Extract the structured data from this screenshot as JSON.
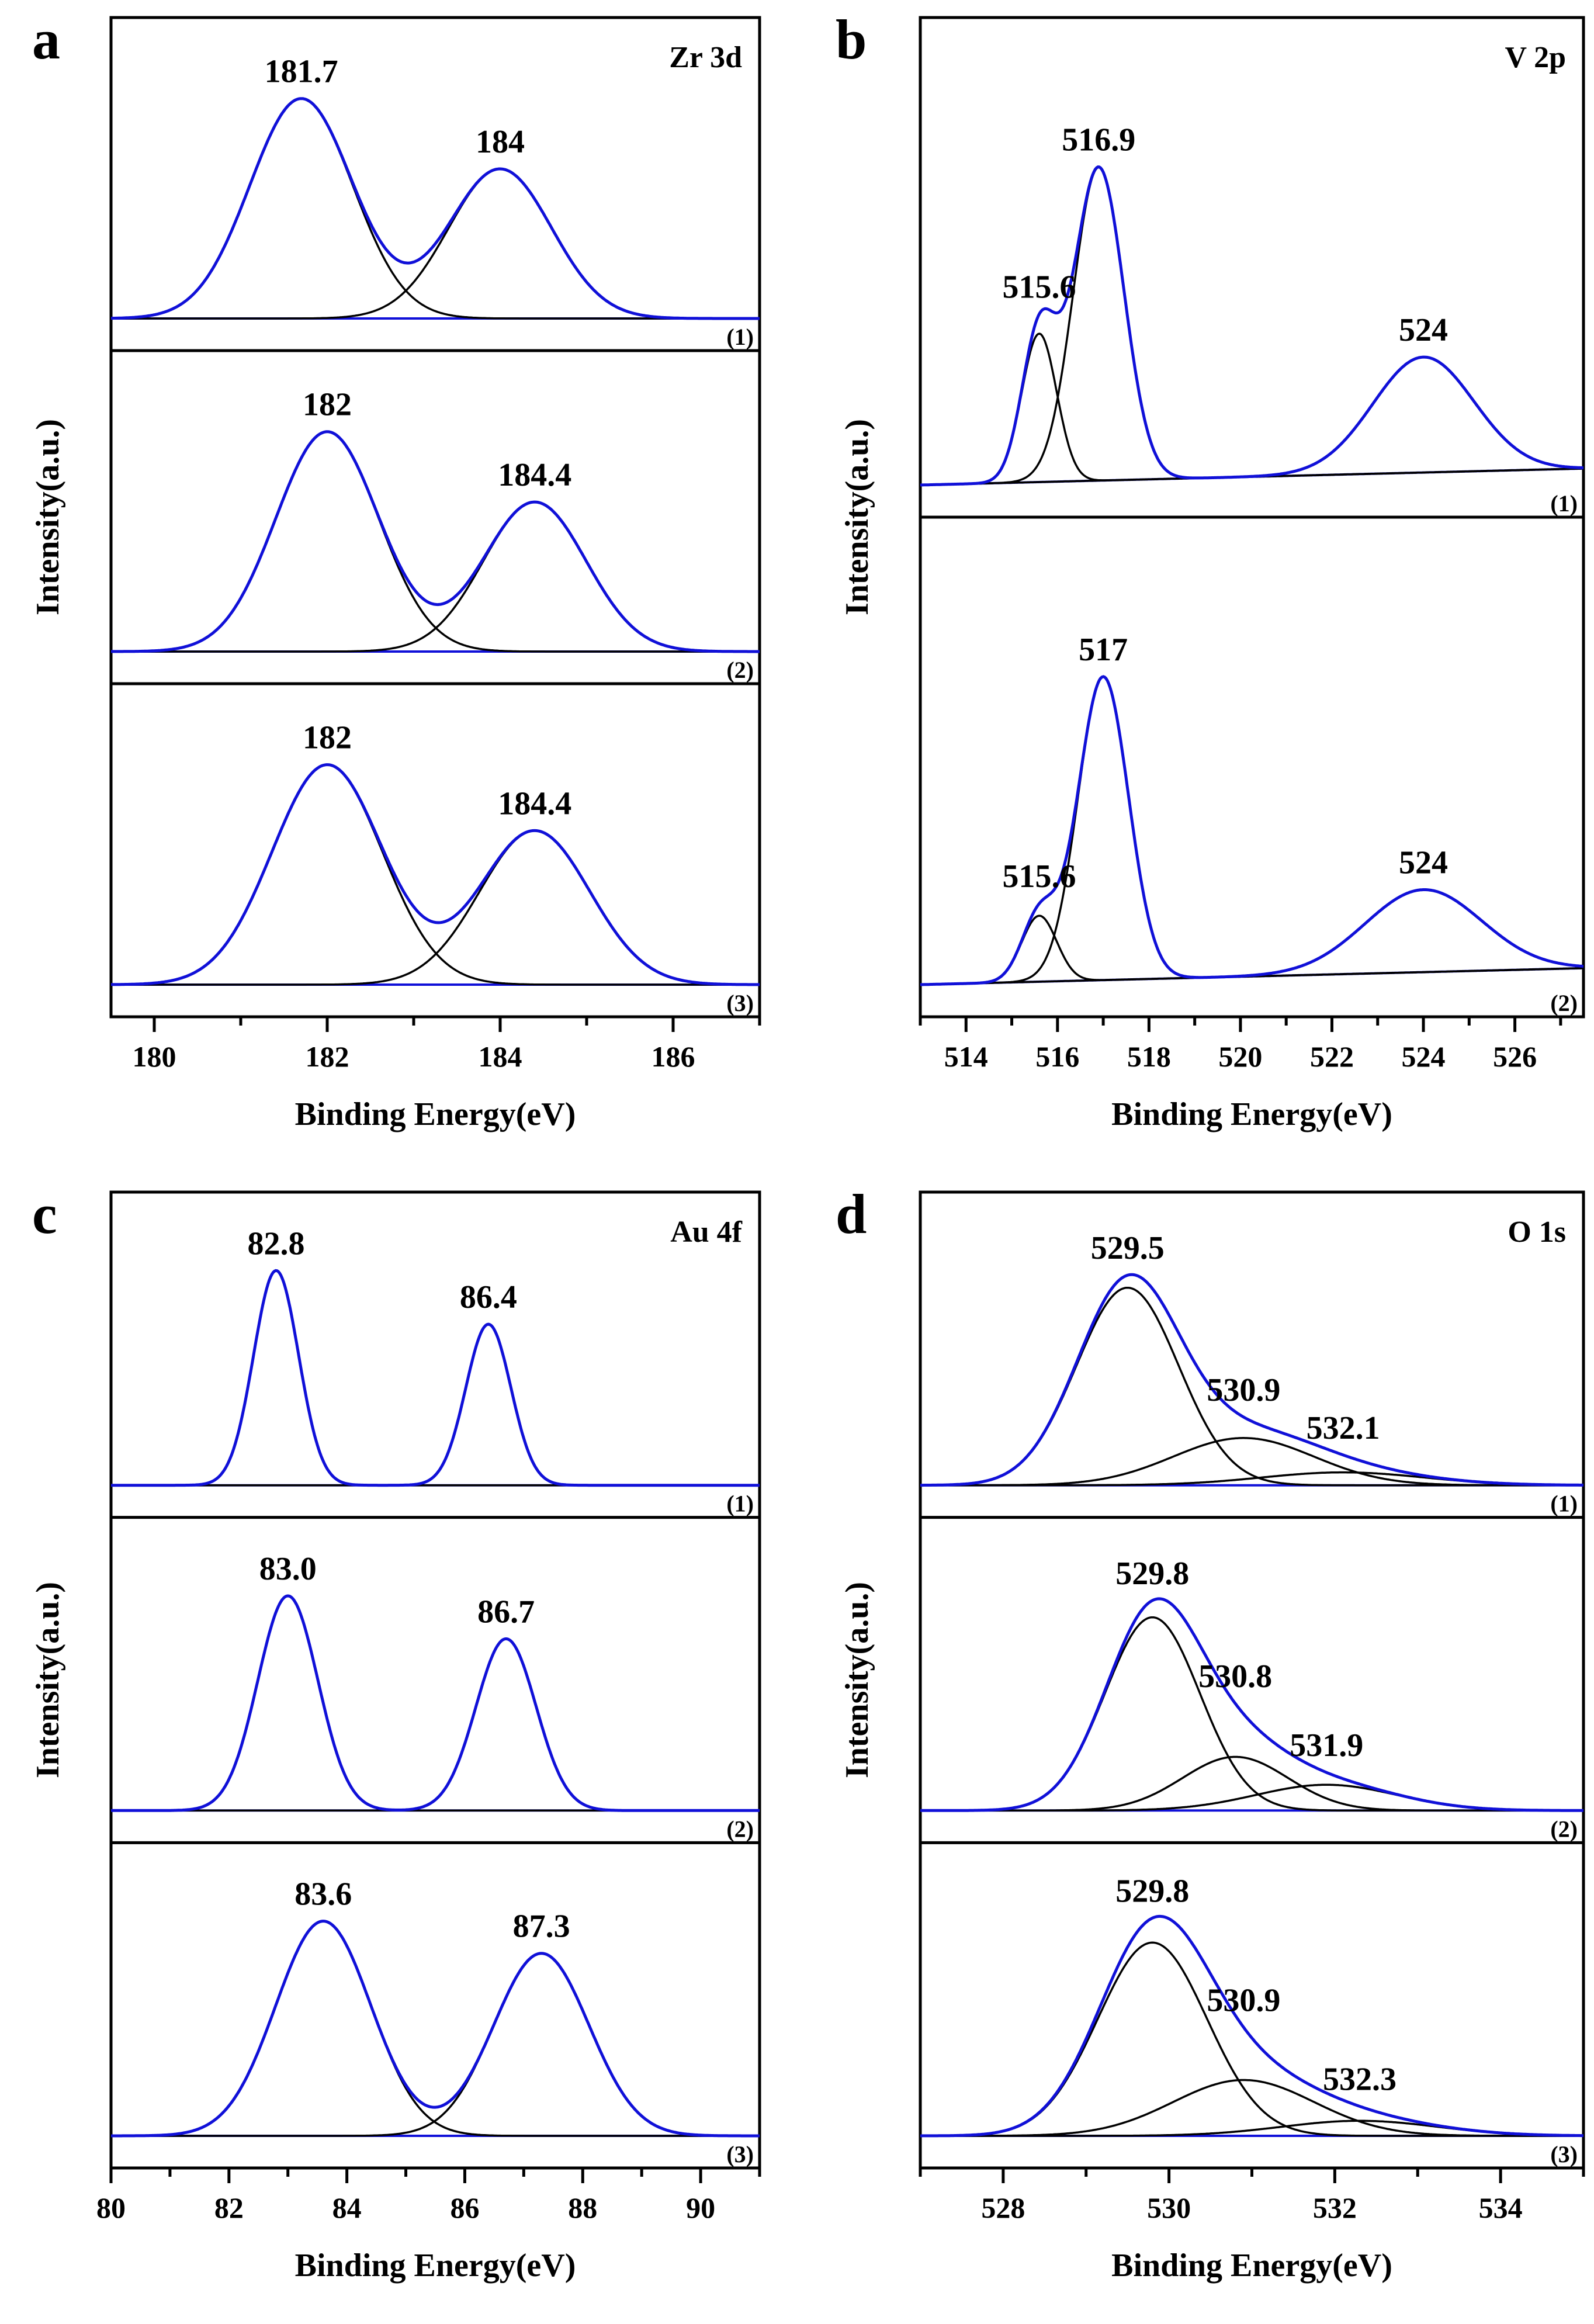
{
  "colors": {
    "envelope": "#1010d8",
    "component": "#000000",
    "axis": "#000000"
  },
  "chart_data": [
    {
      "id": "a",
      "type": "line",
      "panel_label": "a",
      "region_label": "Zr 3d",
      "xlabel": "Binding Energy(eV)",
      "ylabel": "Intensity(a.u.)",
      "xlim": [
        179.5,
        187
      ],
      "x_ticks": [
        180,
        182,
        184,
        186
      ],
      "x_tick_labels": [
        "180",
        "182",
        "184",
        "186"
      ],
      "grid": false,
      "spectra": [
        {
          "label": "(1)",
          "peaks": [
            {
              "center": 181.7,
              "label": "181.7",
              "height": 1.0,
              "fwhm": 1.4
            },
            {
              "center": 184.0,
              "label": "184",
              "height": 0.68,
              "fwhm": 1.4
            }
          ]
        },
        {
          "label": "(2)",
          "peaks": [
            {
              "center": 182.0,
              "label": "182",
              "height": 1.0,
              "fwhm": 1.4
            },
            {
              "center": 184.4,
              "label": "184.4",
              "height": 0.68,
              "fwhm": 1.4
            }
          ]
        },
        {
          "label": "(3)",
          "peaks": [
            {
              "center": 182.0,
              "label": "182",
              "height": 1.0,
              "fwhm": 1.5
            },
            {
              "center": 184.4,
              "label": "184.4",
              "height": 0.7,
              "fwhm": 1.5
            }
          ]
        }
      ]
    },
    {
      "id": "b",
      "type": "line",
      "panel_label": "b",
      "region_label": "V 2p",
      "xlabel": "Binding Energy(eV)",
      "ylabel": "Intensity(a.u.)",
      "xlim": [
        513,
        527.5
      ],
      "x_ticks": [
        514,
        516,
        518,
        520,
        522,
        524,
        526
      ],
      "x_tick_labels": [
        "514",
        "516",
        "518",
        "520",
        "522",
        "524",
        "526"
      ],
      "grid": false,
      "spectra": [
        {
          "label": "(1)",
          "peaks": [
            {
              "center": 515.6,
              "label": "515.6",
              "height": 0.45,
              "fwhm": 0.9
            },
            {
              "center": 516.9,
              "label": "516.9",
              "height": 0.95,
              "fwhm": 1.3
            },
            {
              "center": 524.0,
              "label": "524",
              "height": 0.35,
              "fwhm": 2.6
            }
          ]
        },
        {
          "label": "(2)",
          "peaks": [
            {
              "center": 515.6,
              "label": "515.6",
              "height": 0.2,
              "fwhm": 0.9
            },
            {
              "center": 517.0,
              "label": "517",
              "height": 0.92,
              "fwhm": 1.3
            },
            {
              "center": 524.0,
              "label": "524",
              "height": 0.25,
              "fwhm": 3.0
            }
          ]
        }
      ]
    },
    {
      "id": "c",
      "type": "line",
      "panel_label": "c",
      "region_label": "Au 4f",
      "xlabel": "Binding Energy(eV)",
      "ylabel": "Intensity(a.u.)",
      "xlim": [
        80,
        91
      ],
      "x_ticks": [
        80,
        82,
        84,
        86,
        88,
        90
      ],
      "x_tick_labels": [
        "80",
        "82",
        "84",
        "86",
        "88",
        "90"
      ],
      "grid": false,
      "spectra": [
        {
          "label": "(1)",
          "peaks": [
            {
              "center": 82.8,
              "label": "82.8",
              "height": 1.0,
              "fwhm": 0.9
            },
            {
              "center": 86.4,
              "label": "86.4",
              "height": 0.75,
              "fwhm": 0.9
            }
          ]
        },
        {
          "label": "(2)",
          "peaks": [
            {
              "center": 83.0,
              "label": "83.0",
              "height": 1.0,
              "fwhm": 1.2
            },
            {
              "center": 86.7,
              "label": "86.7",
              "height": 0.8,
              "fwhm": 1.2
            }
          ]
        },
        {
          "label": "(3)",
          "peaks": [
            {
              "center": 83.6,
              "label": "83.6",
              "height": 1.0,
              "fwhm": 1.9
            },
            {
              "center": 87.3,
              "label": "87.3",
              "height": 0.85,
              "fwhm": 1.9
            }
          ]
        }
      ]
    },
    {
      "id": "d",
      "type": "line",
      "panel_label": "d",
      "region_label": "O 1s",
      "xlabel": "Binding Energy(eV)",
      "ylabel": "Intensity(a.u.)",
      "xlim": [
        527,
        535
      ],
      "x_ticks": [
        528,
        530,
        532,
        534
      ],
      "x_tick_labels": [
        "528",
        "530",
        "532",
        "534"
      ],
      "grid": false,
      "spectra": [
        {
          "label": "(1)",
          "peaks": [
            {
              "center": 529.5,
              "label": "529.5",
              "height": 0.92,
              "fwhm": 1.45
            },
            {
              "center": 530.9,
              "label": "530.9",
              "height": 0.22,
              "fwhm": 2.0
            },
            {
              "center": 532.1,
              "label": "532.1",
              "height": 0.06,
              "fwhm": 2.3
            }
          ]
        },
        {
          "label": "(2)",
          "peaks": [
            {
              "center": 529.8,
              "label": "529.8",
              "height": 0.9,
              "fwhm": 1.35
            },
            {
              "center": 530.8,
              "label": "530.8",
              "height": 0.25,
              "fwhm": 1.5
            },
            {
              "center": 531.9,
              "label": "531.9",
              "height": 0.12,
              "fwhm": 2.0
            }
          ]
        },
        {
          "label": "(3)",
          "peaks": [
            {
              "center": 529.8,
              "label": "529.8",
              "height": 0.9,
              "fwhm": 1.55
            },
            {
              "center": 530.9,
              "label": "530.9",
              "height": 0.26,
              "fwhm": 2.0
            },
            {
              "center": 532.3,
              "label": "532.3",
              "height": 0.07,
              "fwhm": 2.2
            }
          ]
        }
      ]
    }
  ]
}
